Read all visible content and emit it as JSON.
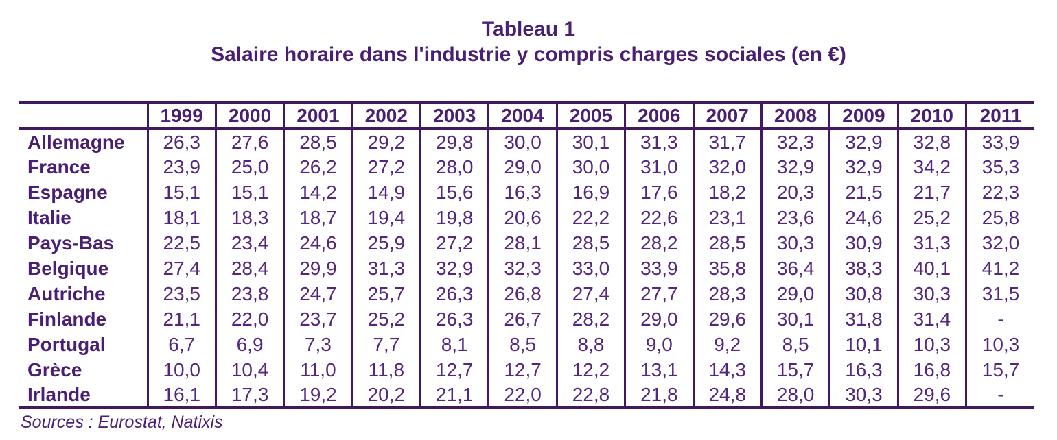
{
  "title": {
    "line1": "Tableau 1",
    "line2": "Salaire horaire dans l'industrie y compris charges sociales (en €)"
  },
  "source": "Sources : Eurostat, Natixis",
  "colors": {
    "title_text": "#4A1F73",
    "body_text": "#53277E",
    "border": "#41195E",
    "background": "#FFFFFF"
  },
  "chart_data": {
    "type": "table",
    "title": "Salaire horaire dans l'industrie y compris charges sociales (en €)",
    "unit": "€",
    "columns": [
      "1999",
      "2000",
      "2001",
      "2002",
      "2003",
      "2004",
      "2005",
      "2006",
      "2007",
      "2008",
      "2009",
      "2010",
      "2011"
    ],
    "rows": [
      {
        "label": "Allemagne",
        "values": [
          "26,3",
          "27,6",
          "28,5",
          "29,2",
          "29,8",
          "30,0",
          "30,1",
          "31,3",
          "31,7",
          "32,3",
          "32,9",
          "32,8",
          "33,9"
        ]
      },
      {
        "label": "France",
        "values": [
          "23,9",
          "25,0",
          "26,2",
          "27,2",
          "28,0",
          "29,0",
          "30,0",
          "31,0",
          "32,0",
          "32,9",
          "32,9",
          "34,2",
          "35,3"
        ]
      },
      {
        "label": "Espagne",
        "values": [
          "15,1",
          "15,1",
          "14,2",
          "14,9",
          "15,6",
          "16,3",
          "16,9",
          "17,6",
          "18,2",
          "20,3",
          "21,5",
          "21,7",
          "22,3"
        ]
      },
      {
        "label": "Italie",
        "values": [
          "18,1",
          "18,3",
          "18,7",
          "19,4",
          "19,8",
          "20,6",
          "22,2",
          "22,6",
          "23,1",
          "23,6",
          "24,6",
          "25,2",
          "25,8"
        ]
      },
      {
        "label": "Pays-Bas",
        "values": [
          "22,5",
          "23,4",
          "24,6",
          "25,9",
          "27,2",
          "28,1",
          "28,5",
          "28,2",
          "28,5",
          "30,3",
          "30,9",
          "31,3",
          "32,0"
        ]
      },
      {
        "label": "Belgique",
        "values": [
          "27,4",
          "28,4",
          "29,9",
          "31,3",
          "32,9",
          "32,3",
          "33,0",
          "33,9",
          "35,8",
          "36,4",
          "38,3",
          "40,1",
          "41,2"
        ]
      },
      {
        "label": "Autriche",
        "values": [
          "23,5",
          "23,8",
          "24,7",
          "25,7",
          "26,3",
          "26,8",
          "27,4",
          "27,7",
          "28,3",
          "29,0",
          "30,8",
          "30,3",
          "31,5"
        ]
      },
      {
        "label": "Finlande",
        "values": [
          "21,1",
          "22,0",
          "23,7",
          "25,2",
          "26,3",
          "26,7",
          "28,2",
          "29,0",
          "29,6",
          "30,1",
          "31,8",
          "31,4",
          "-"
        ]
      },
      {
        "label": "Portugal",
        "values": [
          "6,7",
          "6,9",
          "7,3",
          "7,7",
          "8,1",
          "8,5",
          "8,8",
          "9,0",
          "9,2",
          "8,5",
          "10,1",
          "10,3",
          "10,3"
        ]
      },
      {
        "label": "Grèce",
        "values": [
          "10,0",
          "10,4",
          "11,0",
          "11,8",
          "12,7",
          "12,7",
          "12,2",
          "13,1",
          "14,3",
          "15,7",
          "16,3",
          "16,8",
          "15,7"
        ]
      },
      {
        "label": "Irlande",
        "values": [
          "16,1",
          "17,3",
          "19,2",
          "20,2",
          "21,1",
          "22,0",
          "22,8",
          "21,8",
          "24,8",
          "28,0",
          "30,3",
          "29,6",
          "-"
        ]
      }
    ]
  }
}
